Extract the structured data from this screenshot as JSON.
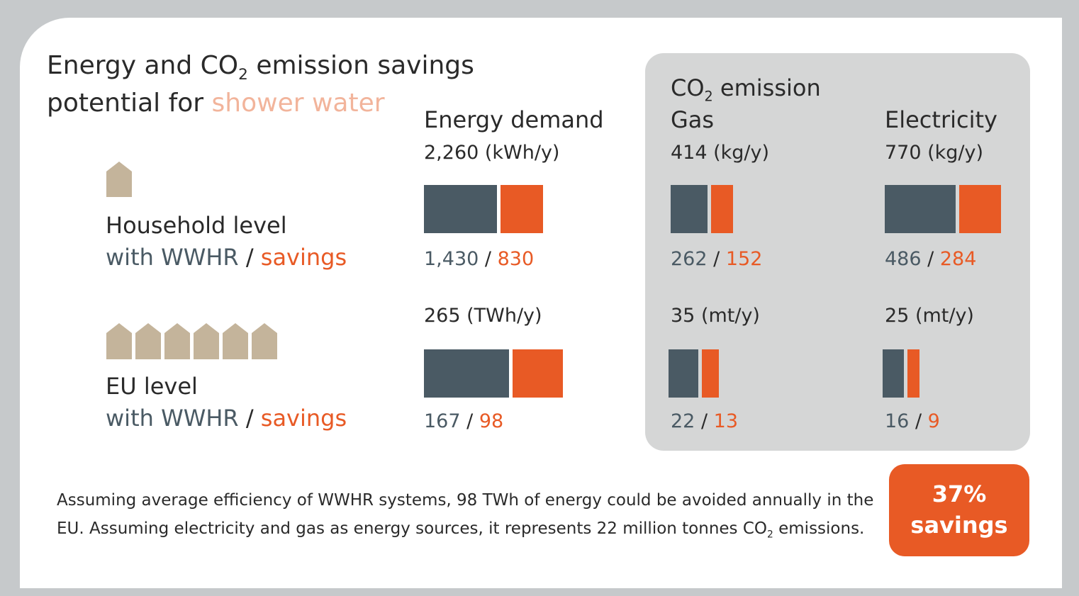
{
  "title": {
    "line1": [
      "Energy and CO",
      "2",
      " emission savings"
    ],
    "line2": [
      "potential for ",
      "shower water"
    ]
  },
  "columns": [
    {
      "header": "Energy demand"
    },
    {
      "header_top": [
        "CO",
        "2",
        " emission"
      ],
      "header": "Gas"
    },
    {
      "header": "Electricity"
    }
  ],
  "separator": "/",
  "rows": [
    {
      "label": "Household level",
      "with": "with WWHR",
      "savings": "savings",
      "cells": [
        {
          "total": "2,260 (kWh/y)",
          "with_wwhr": {
            "value": 1430,
            "label": "1,430"
          },
          "savings": 830
        },
        {
          "total": "414 (kg/y)",
          "with_wwhr": 262,
          "savings": 152
        },
        {
          "total": "770 (kg/y)",
          "with_wwhr": 486,
          "savings": 284
        }
      ]
    },
    {
      "label": "EU level",
      "with": "with WWHR",
      "savings": "savings",
      "cells": [
        {
          "total": "265 (TWh/y)",
          "with_wwhr": 167,
          "savings": 98
        },
        {
          "total": "35 (mt/y)",
          "with_wwhr": 22,
          "savings": 13
        },
        {
          "total": "25 (mt/y)",
          "with_wwhr": 16,
          "savings": 9
        }
      ]
    }
  ],
  "footer": [
    "Assuming average efficiency of WWHR systems, 98 TWh of energy could be avoided annually in the EU. Assuming electricity and gas as energy sources, it represents 22 million tonnes CO",
    "2",
    " emissions."
  ],
  "badge": {
    "value": "37%",
    "label": "savings"
  }
}
